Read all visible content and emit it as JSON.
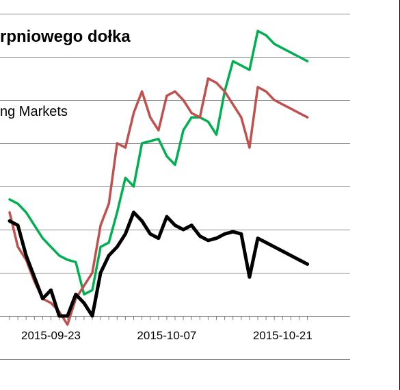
{
  "chart_data": {
    "type": "line",
    "title": "rpniowego dołka",
    "legend_label": "ng Markets",
    "x_tick_labels": [
      "2015-09-23",
      "2015-10-07",
      "2015-10-21"
    ],
    "x_tick_dates": [
      "2015-09-23",
      "2015-10-07",
      "2015-10-21"
    ],
    "x": [
      "2015-09-18",
      "2015-09-19",
      "2015-09-20",
      "2015-09-21",
      "2015-09-22",
      "2015-09-23",
      "2015-09-24",
      "2015-09-25",
      "2015-09-26",
      "2015-09-27",
      "2015-09-28",
      "2015-09-29",
      "2015-09-30",
      "2015-10-01",
      "2015-10-02",
      "2015-10-03",
      "2015-10-04",
      "2015-10-05",
      "2015-10-06",
      "2015-10-07",
      "2015-10-08",
      "2015-10-09",
      "2015-10-10",
      "2015-10-11",
      "2015-10-12",
      "2015-10-13",
      "2015-10-14",
      "2015-10-15",
      "2015-10-16",
      "2015-10-17",
      "2015-10-18",
      "2015-10-19",
      "2015-10-20",
      "2015-10-21",
      "2015-10-22",
      "2015-10-23",
      "2015-10-24"
    ],
    "ylim": [
      0,
      9
    ],
    "grid": true,
    "series": [
      {
        "color": "#00b050",
        "values": [
          2.7,
          2.6,
          2.4,
          2.1,
          1.8,
          1.6,
          1.4,
          1.3,
          1.25,
          0.5,
          0.6,
          1.6,
          1.7,
          2.4,
          3.2,
          3.0,
          4.0,
          4.05,
          4.1,
          3.7,
          3.5,
          4.3,
          4.6,
          4.6,
          4.5,
          4.2,
          5.2,
          5.9,
          5.8,
          5.7,
          6.6,
          6.5,
          6.3,
          6.2,
          6.1,
          6.0,
          5.9
        ]
      },
      {
        "color": "#c0504d",
        "values": [
          2.4,
          1.6,
          1.3,
          0.8,
          0.4,
          0.3,
          0.1,
          -0.2,
          0.4,
          0.7,
          1.0,
          2.1,
          2.6,
          4.0,
          3.9,
          4.7,
          5.2,
          4.6,
          4.3,
          5.1,
          5.2,
          5.0,
          4.7,
          4.6,
          5.5,
          5.4,
          5.2,
          4.9,
          4.6,
          3.9,
          5.3,
          5.2,
          5.0,
          4.9,
          4.8,
          4.7,
          4.6
        ]
      },
      {
        "color": "#000000",
        "values": [
          2.2,
          2.1,
          1.4,
          0.9,
          0.4,
          0.6,
          0.0,
          0.0,
          0.5,
          0.3,
          0.0,
          1.0,
          1.4,
          1.6,
          1.9,
          2.4,
          2.2,
          1.9,
          1.8,
          2.3,
          2.1,
          2.0,
          2.1,
          1.85,
          1.75,
          1.8,
          1.9,
          1.95,
          1.9,
          0.9,
          1.8,
          1.7,
          1.6,
          1.5,
          1.4,
          1.3,
          1.2
        ]
      }
    ]
  }
}
